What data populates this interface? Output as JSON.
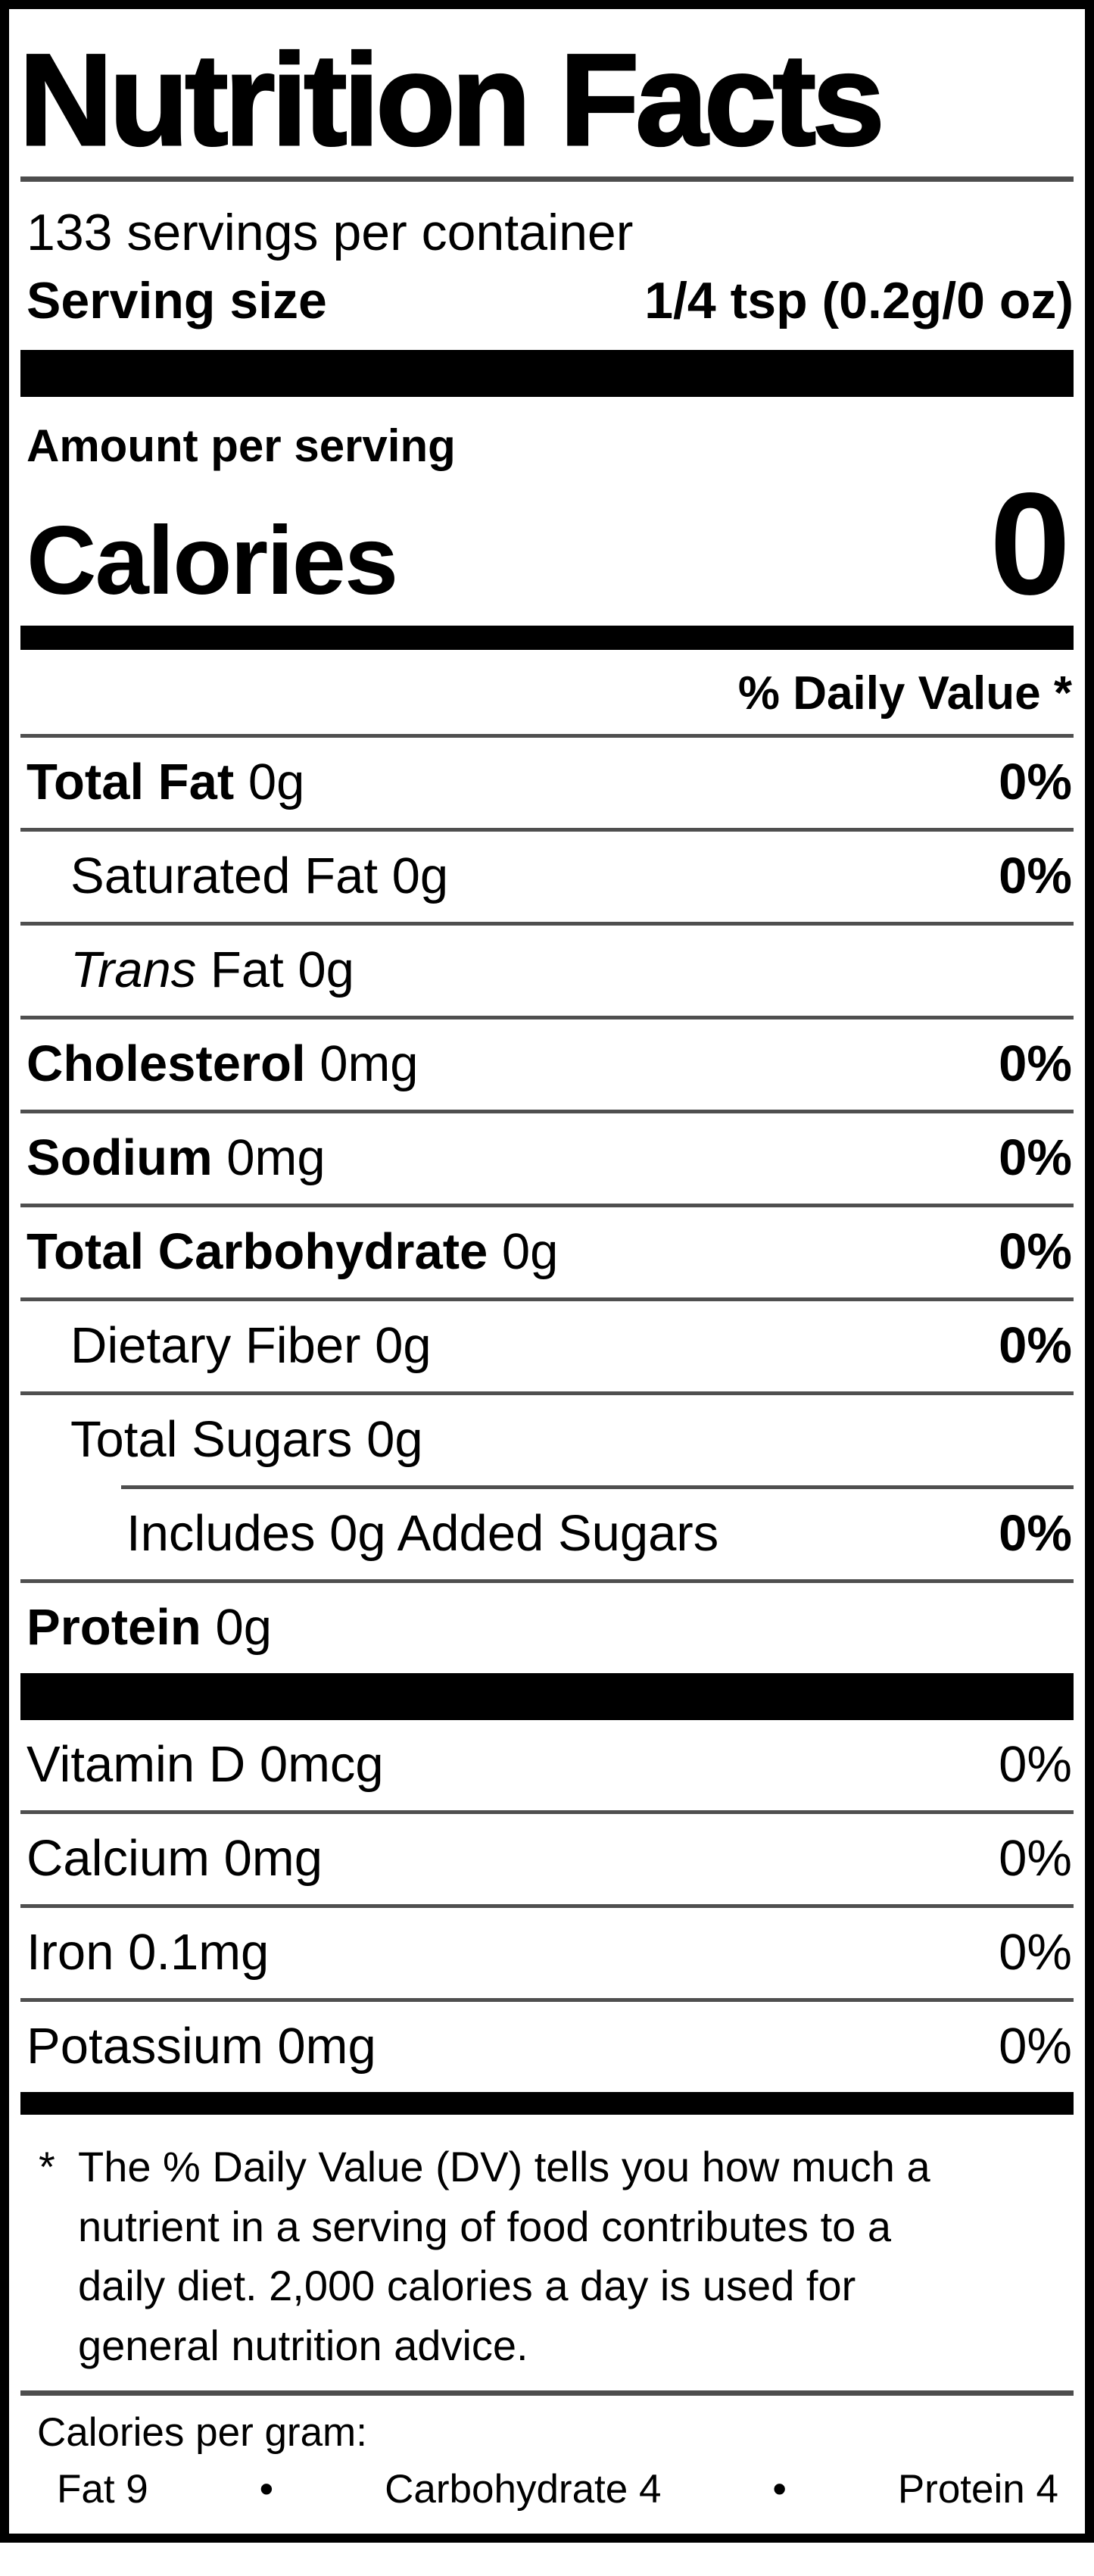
{
  "label": {
    "title": "Nutrition Facts",
    "servings_per_container": "133 servings per container",
    "serving_size": {
      "label": "Serving size",
      "value": "1/4 tsp (0.2g/0 oz)"
    },
    "amount_per_serving": "Amount per serving",
    "calories": {
      "label": "Calories",
      "value": "0"
    },
    "daily_value_header": "% Daily Value *",
    "rows": [
      {
        "name": "Total Fat",
        "amount": "0g",
        "dv": "0%"
      },
      {
        "name": "Saturated Fat",
        "amount": "0g",
        "dv": "0%"
      },
      {
        "name": "Trans",
        "rest": "Fat 0g",
        "dv": ""
      },
      {
        "name": "Cholesterol",
        "amount": "0mg",
        "dv": "0%"
      },
      {
        "name": "Sodium",
        "amount": "0mg",
        "dv": "0%"
      },
      {
        "name": "Total Carbohydrate",
        "amount": "0g",
        "dv": "0%"
      },
      {
        "name": "Dietary Fiber",
        "amount": "0g",
        "dv": "0%"
      },
      {
        "name": "Total Sugars",
        "amount": "0g",
        "dv": ""
      },
      {
        "name": "Includes 0g Added Sugars",
        "dv": "0%"
      },
      {
        "name": "Protein",
        "amount": "0g",
        "dv": ""
      }
    ],
    "vitamins": [
      {
        "name": "Vitamin D",
        "amount": "0mcg",
        "dv": "0%"
      },
      {
        "name": "Calcium",
        "amount": "0mg",
        "dv": "0%"
      },
      {
        "name": "Iron",
        "amount": "0.1mg",
        "dv": "0%"
      },
      {
        "name": "Potassium",
        "amount": "0mg",
        "dv": "0%"
      }
    ],
    "footnote": {
      "marker": "*",
      "lines": [
        "The % Daily Value (DV) tells you how much a",
        "nutrient in a serving of food contributes to a",
        "daily diet. 2,000 calories a day is used for",
        "general nutrition advice."
      ]
    },
    "calories_per_gram": {
      "label": "Calories per gram:",
      "separator": "•",
      "items": [
        "Fat 9",
        "Carbohydrate 4",
        "Protein 4"
      ]
    }
  }
}
